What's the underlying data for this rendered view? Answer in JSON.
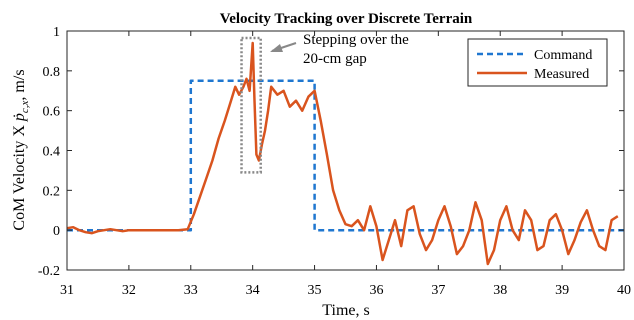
{
  "chart_data": {
    "type": "line",
    "title": "Velocity Tracking over Discrete Terrain",
    "xlabel": "Time, s",
    "ylabel_prefix": "CoM Velocity X ",
    "ylabel_math": "ṗ",
    "ylabel_sub": "c,x",
    "ylabel_suffix": ", m/s",
    "xlim": [
      31,
      40
    ],
    "ylim": [
      -0.2,
      1.0
    ],
    "xticks": [
      31,
      32,
      33,
      34,
      35,
      36,
      37,
      38,
      39,
      40
    ],
    "yticks": [
      -0.2,
      0,
      0.2,
      0.4,
      0.6,
      0.8,
      1
    ],
    "ytick_labels": [
      "-0.2",
      "0",
      "0.2",
      "0.4",
      "0.6",
      "0.8",
      "1"
    ],
    "grid": false,
    "legend_position": "top-right",
    "annotation": {
      "line1": "Stepping over the",
      "line2": "20-cm gap",
      "box_x": [
        33.82,
        34.13
      ],
      "box_y": [
        0.29,
        0.965
      ]
    },
    "series": [
      {
        "name": "Command",
        "color": "#1f77d0",
        "style": "dashed",
        "x": [
          31,
          33.0,
          33.0,
          35.0,
          35.0,
          40
        ],
        "y": [
          0,
          0,
          0.75,
          0.75,
          0,
          0
        ]
      },
      {
        "name": "Measured",
        "color": "#d9541e",
        "style": "solid",
        "x": [
          31.0,
          31.1,
          31.2,
          31.3,
          31.4,
          31.5,
          31.6,
          31.7,
          31.8,
          31.9,
          32.0,
          32.2,
          32.4,
          32.6,
          32.8,
          32.95,
          33.05,
          33.15,
          33.25,
          33.35,
          33.45,
          33.55,
          33.65,
          33.72,
          33.78,
          33.85,
          33.9,
          33.95,
          34.0,
          34.03,
          34.06,
          34.1,
          34.15,
          34.2,
          34.25,
          34.3,
          34.4,
          34.5,
          34.6,
          34.7,
          34.8,
          34.9,
          35.0,
          35.1,
          35.2,
          35.3,
          35.4,
          35.5,
          35.6,
          35.7,
          35.8,
          35.9,
          36.0,
          36.1,
          36.2,
          36.3,
          36.4,
          36.5,
          36.6,
          36.7,
          36.8,
          36.9,
          37.0,
          37.1,
          37.2,
          37.3,
          37.4,
          37.5,
          37.6,
          37.7,
          37.8,
          37.9,
          38.0,
          38.1,
          38.2,
          38.3,
          38.4,
          38.5,
          38.6,
          38.7,
          38.8,
          38.9,
          39.0,
          39.1,
          39.2,
          39.3,
          39.4,
          39.5,
          39.6,
          39.7,
          39.8,
          39.9
        ],
        "y": [
          0.01,
          0.015,
          0.0,
          -0.01,
          -0.015,
          -0.005,
          0.0,
          0.005,
          0.0,
          -0.005,
          0.0,
          0.0,
          0.0,
          0.0,
          0.0,
          0.005,
          0.08,
          0.17,
          0.26,
          0.35,
          0.46,
          0.55,
          0.65,
          0.72,
          0.68,
          0.72,
          0.76,
          0.7,
          0.94,
          0.65,
          0.38,
          0.35,
          0.43,
          0.5,
          0.6,
          0.72,
          0.68,
          0.7,
          0.62,
          0.65,
          0.6,
          0.67,
          0.7,
          0.55,
          0.38,
          0.2,
          0.1,
          0.03,
          0.02,
          0.05,
          0.0,
          0.12,
          0.02,
          -0.15,
          -0.05,
          0.05,
          -0.08,
          0.1,
          0.12,
          -0.02,
          -0.1,
          -0.05,
          0.05,
          0.12,
          0.02,
          -0.12,
          -0.08,
          0.0,
          0.14,
          0.05,
          -0.17,
          -0.1,
          0.05,
          0.12,
          0.0,
          -0.05,
          0.1,
          0.05,
          -0.1,
          -0.08,
          0.05,
          0.08,
          0.0,
          -0.12,
          -0.05,
          0.04,
          0.1,
          0.0,
          -0.08,
          -0.1,
          0.05,
          0.07
        ]
      }
    ]
  }
}
